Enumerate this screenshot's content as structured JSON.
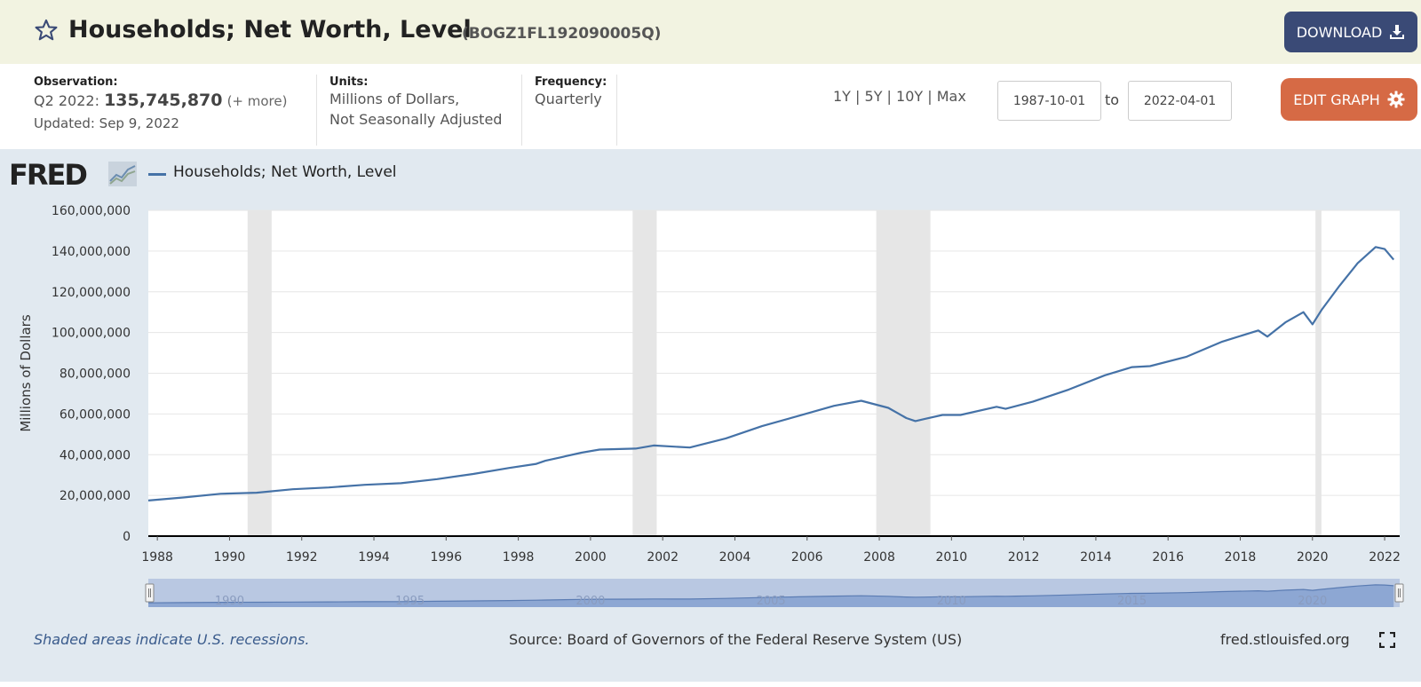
{
  "header": {
    "title": "Households; Net Worth, Level",
    "series_id": "(BOGZ1FL192090005Q)",
    "download_label": "DOWNLOAD",
    "icons": {
      "favorite": "star-icon",
      "download": "download-icon"
    }
  },
  "info": {
    "observation_label": "Observation:",
    "observation_period": "Q2 2022:",
    "observation_value": "135,745,870",
    "observation_more": "(+ more)",
    "updated": "Updated: Sep 9, 2022",
    "units_label": "Units:",
    "units_line1": "Millions of Dollars,",
    "units_line2": "Not Seasonally Adjusted",
    "frequency_label": "Frequency:",
    "frequency_value": "Quarterly",
    "ranges": [
      "1Y",
      "5Y",
      "10Y",
      "Max"
    ],
    "start_date": "1987-10-01",
    "to_label": "to",
    "end_date": "2022-04-01",
    "edit_label": "EDIT GRAPH",
    "icons": {
      "edit": "gear-icon"
    }
  },
  "graph": {
    "logo_text": "FRED",
    "footer_note": "Shaded areas indicate U.S. recessions.",
    "source": "Source: Board of Governors of the Federal Reserve System (US)",
    "site": "fred.stlouisfed.org",
    "icons": {
      "fullscreen": "fullscreen-icon",
      "logo": "fred-logo-graph-icon"
    }
  },
  "colors": {
    "series_line": "#4572a7",
    "recession_shade": "#e6e6e6",
    "header_bg": "#f2f3e1",
    "graph_bg": "#e1e9f0",
    "download_button": "#3a4a76",
    "edit_button": "#d66a45"
  },
  "chart_data": {
    "type": "line",
    "title": "",
    "xlabel": "",
    "ylabel": "Millions of Dollars",
    "ylim": [
      0,
      160000000
    ],
    "xlim": [
      "1987-10-01",
      "2022-06-01"
    ],
    "yticks": [
      0,
      20000000,
      40000000,
      60000000,
      80000000,
      100000000,
      120000000,
      140000000,
      160000000
    ],
    "ytick_labels": [
      "0",
      "20,000,000",
      "40,000,000",
      "60,000,000",
      "80,000,000",
      "100,000,000",
      "120,000,000",
      "140,000,000",
      "160,000,000"
    ],
    "xtick_labels": [
      "1988",
      "1990",
      "1992",
      "1994",
      "1996",
      "1998",
      "2000",
      "2002",
      "2004",
      "2006",
      "2008",
      "2010",
      "2012",
      "2014",
      "2016",
      "2018",
      "2020",
      "2022"
    ],
    "legend": [
      "Households; Net Worth, Level"
    ],
    "legend_position": "top-left",
    "grid": true,
    "recessions": [
      [
        "1990-07-01",
        "1991-03-01"
      ],
      [
        "2001-03-01",
        "2001-11-01"
      ],
      [
        "2007-12-01",
        "2009-06-01"
      ],
      [
        "2020-02-01",
        "2020-04-01"
      ]
    ],
    "navigator_labels": [
      "1990",
      "1995",
      "2000",
      "2005",
      "2010",
      "2015",
      "2020"
    ],
    "series": [
      {
        "name": "Households; Net Worth, Level",
        "x": [
          "1987-10-01",
          "1988-10-01",
          "1989-10-01",
          "1990-10-01",
          "1991-10-01",
          "1992-10-01",
          "1993-10-01",
          "1994-10-01",
          "1995-10-01",
          "1996-10-01",
          "1997-10-01",
          "1998-07-01",
          "1998-10-01",
          "1999-10-01",
          "2000-04-01",
          "2001-04-01",
          "2001-10-01",
          "2002-10-01",
          "2003-10-01",
          "2004-10-01",
          "2005-10-01",
          "2006-10-01",
          "2007-07-01",
          "2008-04-01",
          "2008-10-01",
          "2009-01-01",
          "2009-04-01",
          "2009-10-01",
          "2010-04-01",
          "2011-04-01",
          "2011-07-01",
          "2012-04-01",
          "2013-04-01",
          "2014-04-01",
          "2015-01-01",
          "2015-07-01",
          "2016-07-01",
          "2017-07-01",
          "2018-07-01",
          "2018-10-01",
          "2019-04-01",
          "2019-10-01",
          "2020-01-01",
          "2020-04-01",
          "2020-10-01",
          "2021-04-01",
          "2021-10-01",
          "2022-01-01",
          "2022-04-01"
        ],
        "values": [
          17500000,
          19000000,
          20800000,
          21300000,
          23000000,
          23900000,
          25200000,
          26000000,
          28000000,
          30500000,
          33500000,
          35500000,
          37000000,
          41000000,
          42500000,
          43000000,
          44500000,
          43500000,
          48000000,
          54000000,
          59000000,
          64000000,
          66500000,
          63000000,
          58000000,
          56500000,
          57500000,
          59500000,
          59500000,
          63500000,
          62500000,
          66000000,
          72000000,
          79000000,
          83000000,
          83500000,
          88000000,
          95500000,
          101000000,
          98000000,
          105000000,
          110000000,
          104000000,
          111000000,
          123000000,
          134000000,
          142000000,
          141000000,
          135745870
        ]
      }
    ]
  }
}
